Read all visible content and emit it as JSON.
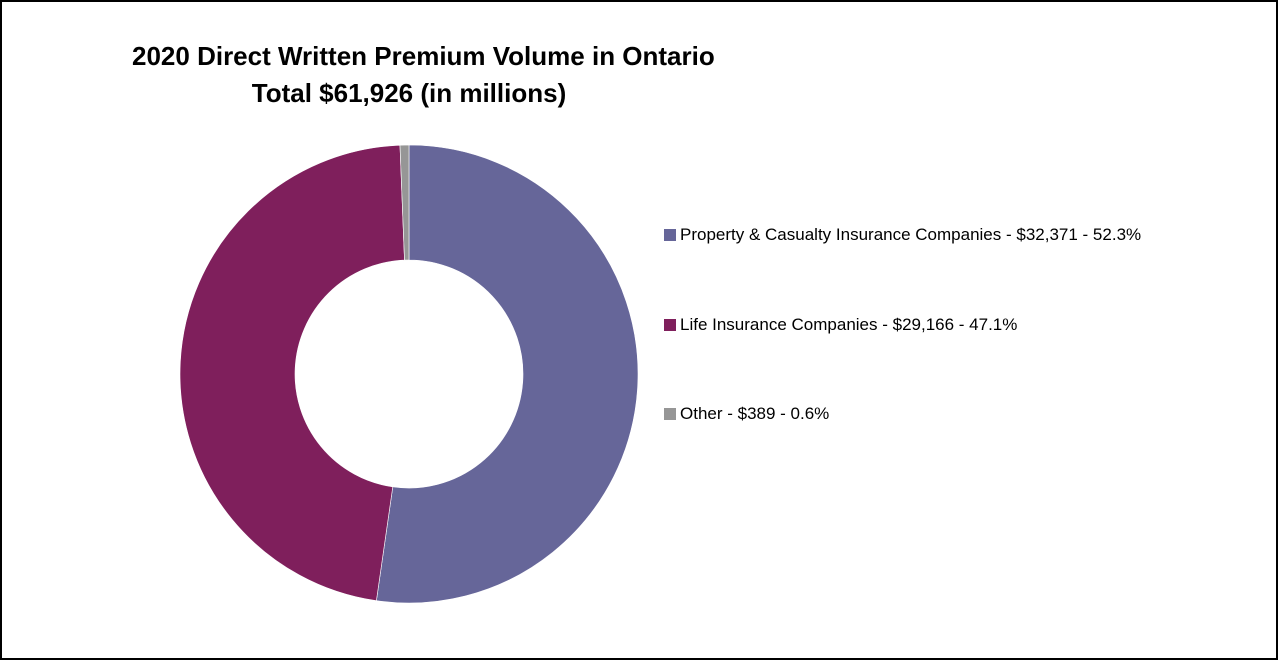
{
  "chart_data": {
    "type": "pie",
    "title": "2020 Direct Written Premium Volume in Ontario",
    "subtitle": "Total $61,926 (in millions)",
    "donut": true,
    "legend_position": "right",
    "total": 61926,
    "slices": [
      {
        "label": "Property & Casualty Insurance Companies - $32,371 - 52.3%",
        "value": 32371,
        "percent": 52.3,
        "color": "#666699"
      },
      {
        "label": "Life Insurance Companies - $29,166 - 47.1%",
        "value": 29166,
        "percent": 47.1,
        "color": "#7f1f5c"
      },
      {
        "label": "Other - $389 - 0.6%",
        "value": 389,
        "percent": 0.6,
        "color": "#969696"
      }
    ]
  }
}
